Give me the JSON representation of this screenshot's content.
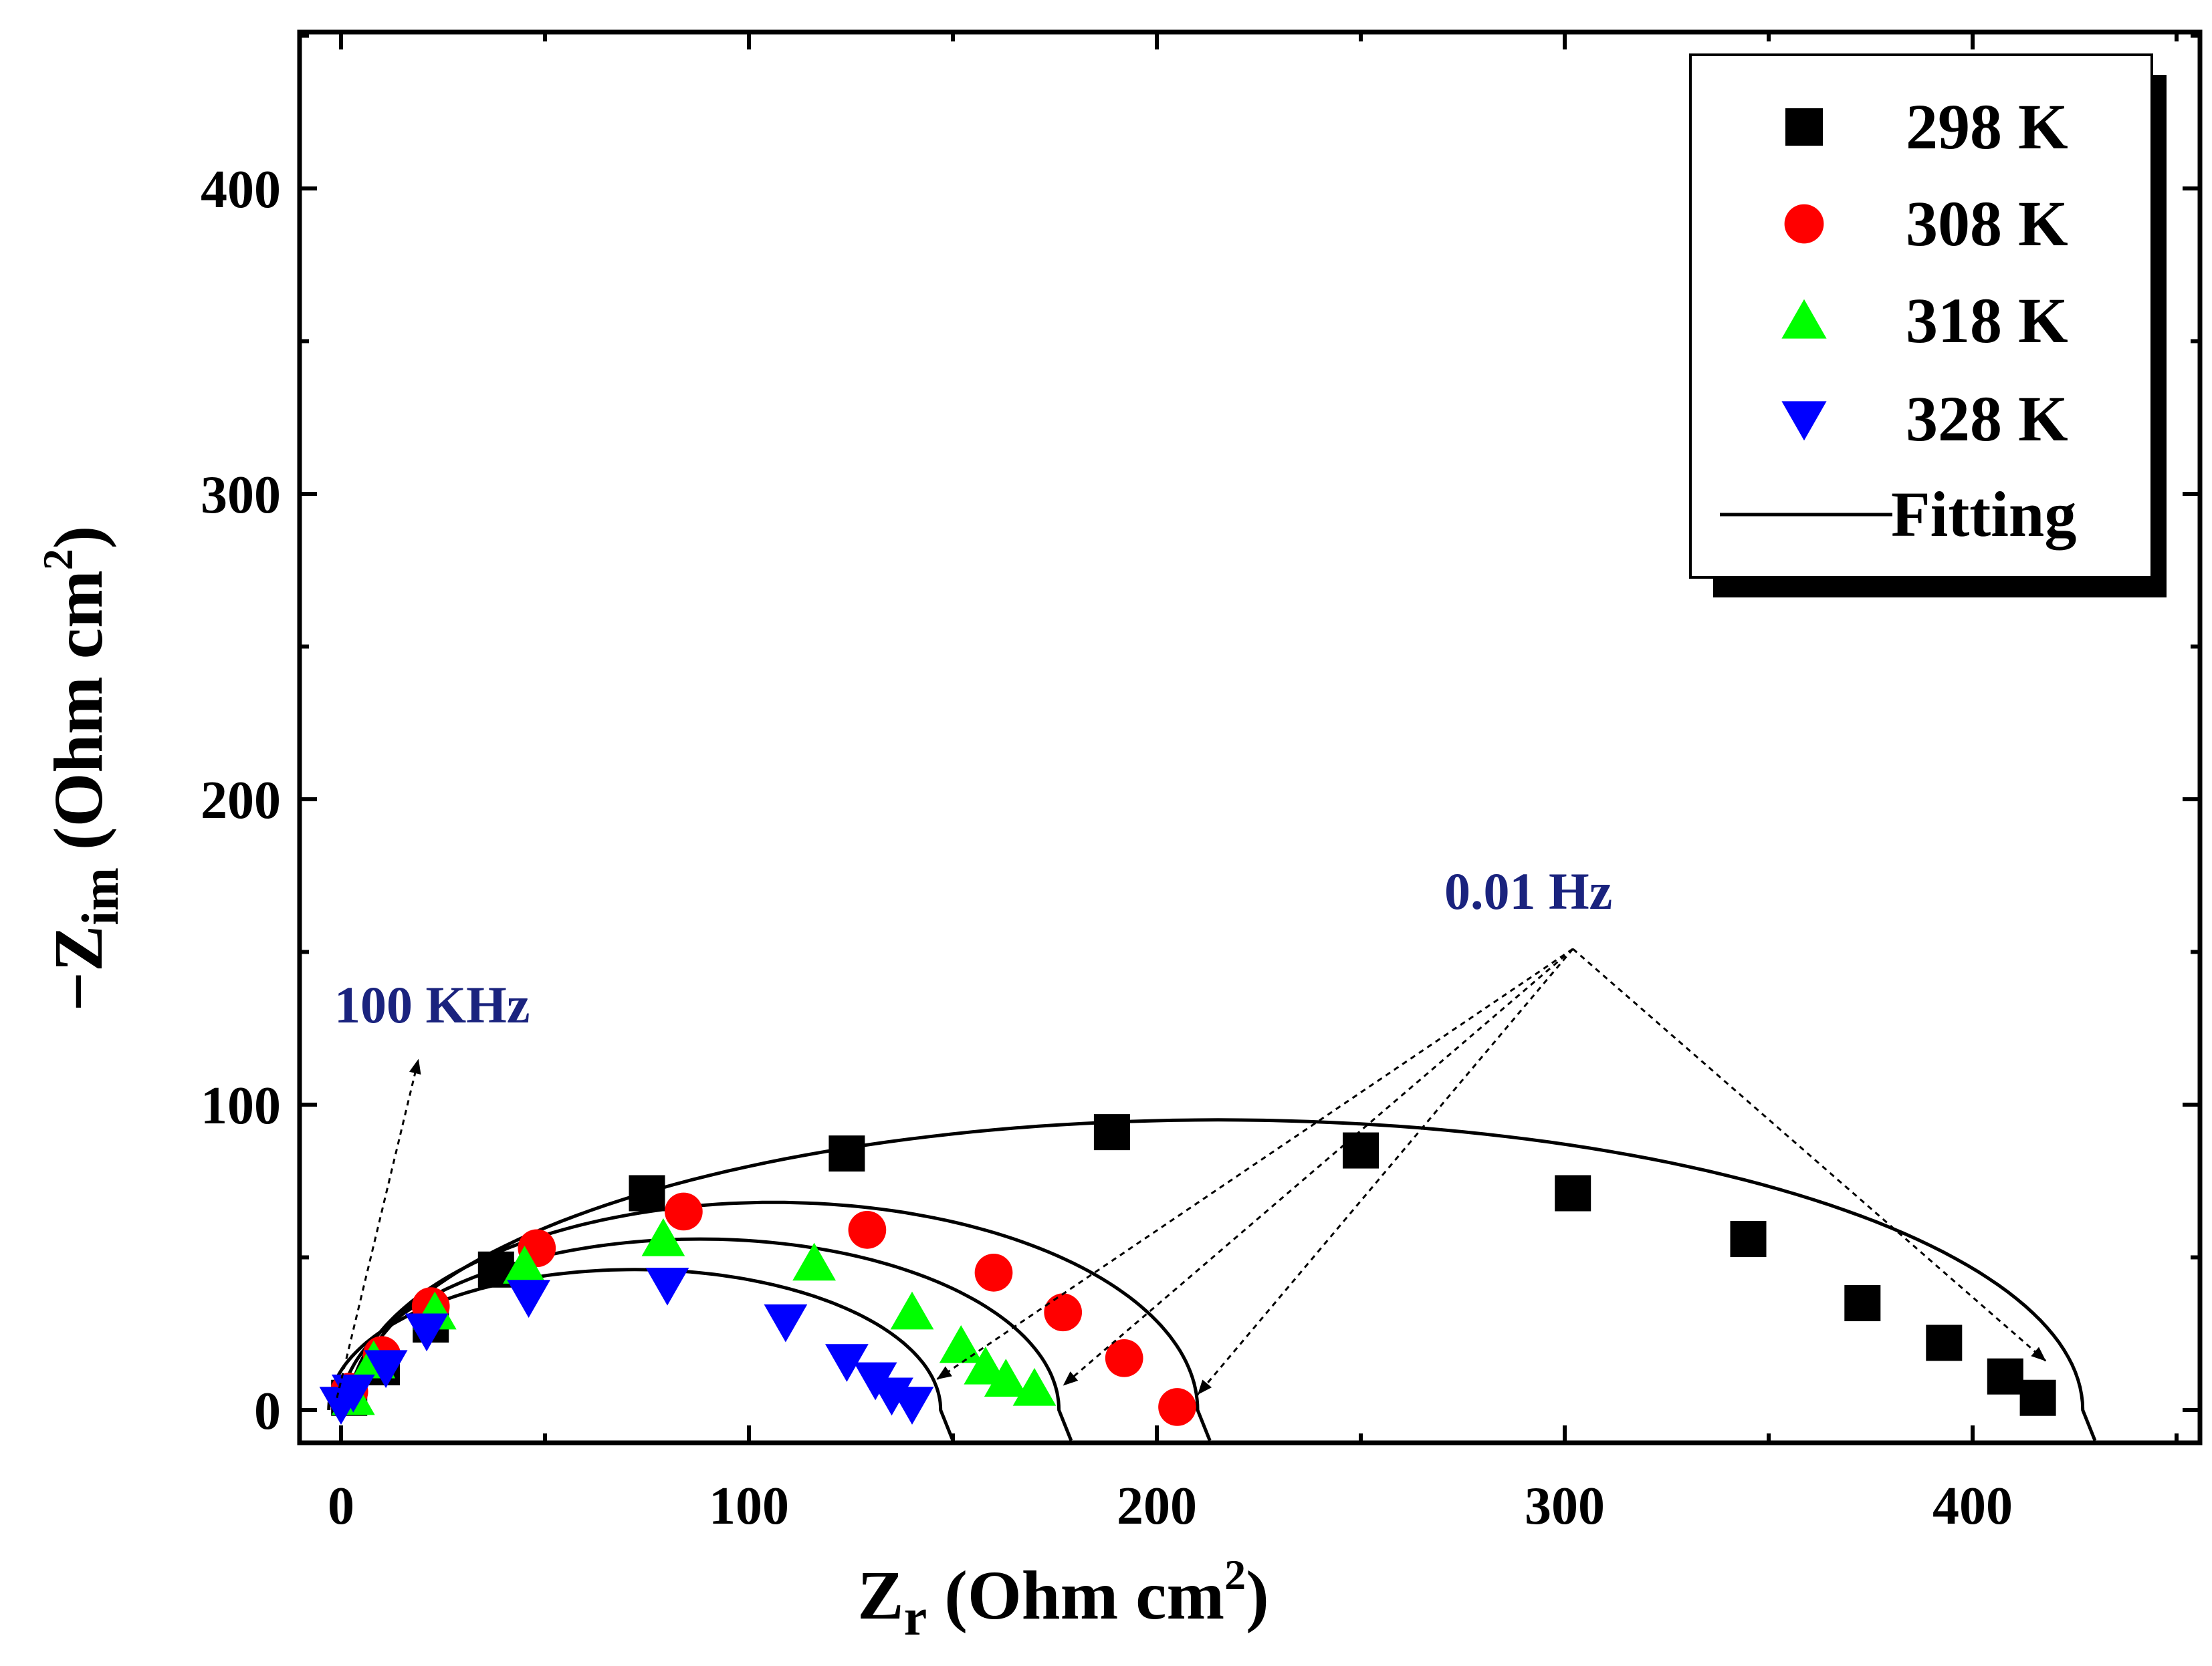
{
  "chart_data": {
    "type": "scatter",
    "title": "",
    "xlabel": {
      "main": "Z",
      "sub": "r",
      "unit_open": " (Ohm cm",
      "sup": "2",
      "unit_close": ")"
    },
    "ylabel": {
      "main": "−Z",
      "sub": "im",
      "unit_open": " (Ohm cm",
      "sup": "2",
      "unit_close": ")"
    },
    "xlim": [
      -10,
      450
    ],
    "ylim": [
      -10,
      450
    ],
    "xticks": [
      "0",
      "100",
      "200",
      "300",
      "400"
    ],
    "yticks": [
      "0",
      "100",
      "200",
      "300",
      "400"
    ],
    "grid": false,
    "legend_position": "top-right",
    "legend_fit_label": "Fitting",
    "series": [
      {
        "name": "298 K",
        "marker": "square",
        "color": "#000000",
        "fit": {
          "center": 215,
          "radius": 212,
          "peak": 95
        },
        "x": [
          2,
          10,
          22,
          38,
          75,
          124,
          189,
          250,
          302,
          345,
          373,
          393,
          408,
          416
        ],
        "y": [
          4,
          14,
          28,
          46,
          71,
          84,
          91,
          85,
          71,
          56,
          35,
          22,
          11,
          4
        ]
      },
      {
        "name": "308 K",
        "marker": "circle",
        "color": "#ff0000",
        "fit": {
          "center": 106,
          "radius": 104,
          "peak": 68
        },
        "x": [
          2,
          10,
          22,
          48,
          84,
          129,
          160,
          177,
          192,
          205
        ],
        "y": [
          6,
          18,
          34,
          53,
          65,
          59,
          45,
          32,
          17,
          1
        ]
      },
      {
        "name": "318 K",
        "marker": "triangle-up",
        "color": "#00ff00",
        "fit": {
          "center": 88,
          "radius": 88,
          "peak": 56
        },
        "x": [
          3,
          8,
          23,
          45,
          79,
          116,
          140,
          152,
          158,
          163,
          170
        ],
        "y": [
          4,
          16,
          32,
          47,
          56,
          48,
          32,
          21,
          14,
          10,
          7
        ]
      },
      {
        "name": "328 K",
        "marker": "triangle-down",
        "color": "#0000ff",
        "fit": {
          "center": 72,
          "radius": 75,
          "peak": 46
        },
        "x": [
          0,
          3,
          11,
          21,
          46,
          80,
          109,
          124,
          131,
          135,
          140
        ],
        "y": [
          2,
          6,
          14,
          26,
          37,
          41,
          29,
          16,
          10,
          5,
          2
        ]
      }
    ],
    "annotations": [
      {
        "text": "100 KHz",
        "color": "#1a237e",
        "anchor": [
          -1,
          4
        ],
        "arrow_to": [
          19,
          115
        ]
      },
      {
        "text": "0.01 Hz",
        "color": "#1a237e",
        "anchor": [
          302,
          151
        ],
        "arrow_to": [
          [
            146,
            10
          ],
          [
            177,
            8
          ],
          [
            210,
            5
          ],
          [
            418,
            16
          ]
        ]
      }
    ]
  }
}
